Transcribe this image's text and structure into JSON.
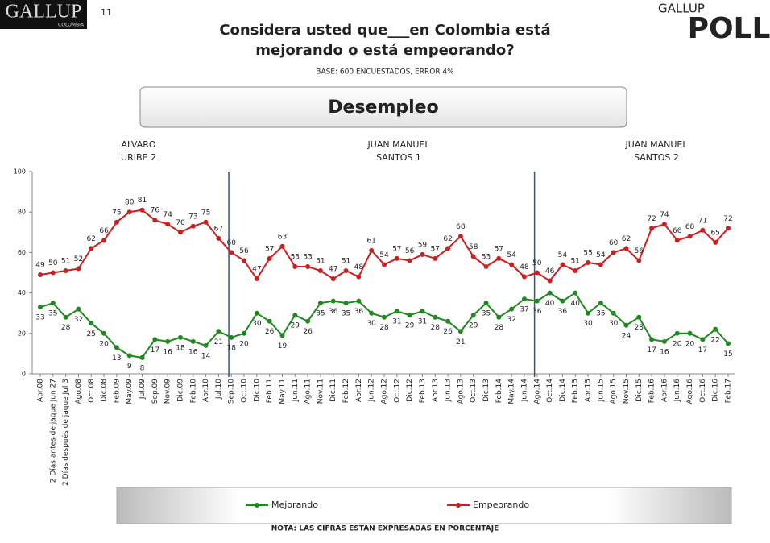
{
  "header": {
    "logo_left": "GALLUP",
    "logo_left_sub": "COLOMBIA",
    "page_number": "11",
    "logo_right_top": "GALLUP",
    "logo_right_bottom": "POLL"
  },
  "chart_data": {
    "type": "line",
    "title": [
      "Considera usted que___en Colombia está",
      "mejorando o está empeorando?"
    ],
    "subtitle": "BASE: 600 ENCUESTADOS, ERROR 4%",
    "panel_title": "Desempleo",
    "periods": [
      [
        "ALVARO",
        "URIBE 2"
      ],
      [
        "JUAN MANUEL",
        "SANTOS 1"
      ],
      [
        "JUAN MANUEL",
        "SANTOS 2"
      ]
    ],
    "note": "NOTA: LAS CIFRAS ESTÁN EXPRESADAS EN PORCENTAJE",
    "categories": [
      "Abr.08",
      "2 Días antes de jaque Jun 27",
      "2 Días después de jaque Jul 3",
      "Ago.08",
      "Oct.08",
      "Dic.08",
      "Feb.09",
      "May.09",
      "Jul.09",
      "Sep.09",
      "Nov.09",
      "Dic.09",
      "Feb.10",
      "Abr.10",
      "Jul.10",
      "Sep.10",
      "Oct.10",
      "Dic.10",
      "Feb.11",
      "May.11",
      "Jun.11",
      "Ago.11",
      "Nov.11",
      "Dic.11",
      "Feb.12",
      "Abr.12",
      "Jun.12",
      "Ago.12",
      "Oct.12",
      "Dic.12",
      "Feb.13",
      "Abr.13",
      "Jun.13",
      "Ago.13",
      "Oct.13",
      "Dic.13",
      "Feb.14",
      "May.14",
      "Jun.14",
      "Ago.14",
      "Oct.14",
      "Dic.14",
      "Feb.15",
      "Abr.15",
      "Jun.15",
      "Ago.15",
      "Nov.15",
      "Dic.15",
      "Feb.16",
      "Abr.16",
      "Jun.16",
      "Ago.16",
      "Oct.16",
      "Dic.16",
      "Feb.17"
    ],
    "series": [
      {
        "name": "Mejorando",
        "color": "#1e8a1e",
        "values": [
          33,
          35,
          28,
          32,
          25,
          20,
          13,
          9,
          8,
          17,
          16,
          18,
          16,
          14,
          21,
          18,
          20,
          30,
          26,
          19,
          29,
          26,
          35,
          36,
          35,
          36,
          30,
          28,
          31,
          29,
          31,
          28,
          26,
          21,
          29,
          35,
          28,
          32,
          37,
          36,
          40,
          36,
          40,
          30,
          35,
          30,
          24,
          28,
          17,
          16,
          20,
          20,
          17,
          22,
          15
        ]
      },
      {
        "name": "Empeorando",
        "color": "#cc1f1f",
        "values": [
          49,
          50,
          51,
          52,
          62,
          66,
          75,
          80,
          81,
          76,
          74,
          70,
          73,
          75,
          67,
          60,
          56,
          47,
          57,
          63,
          53,
          53,
          51,
          47,
          51,
          48,
          61,
          54,
          57,
          56,
          59,
          57,
          62,
          68,
          58,
          53,
          57,
          54,
          48,
          50,
          46,
          54,
          51,
          55,
          54,
          60,
          62,
          56,
          72,
          74,
          66,
          68,
          71,
          65,
          72
        ]
      }
    ],
    "ylim": [
      0,
      100
    ],
    "yticks": [
      0,
      20,
      40,
      60,
      80,
      100
    ]
  }
}
